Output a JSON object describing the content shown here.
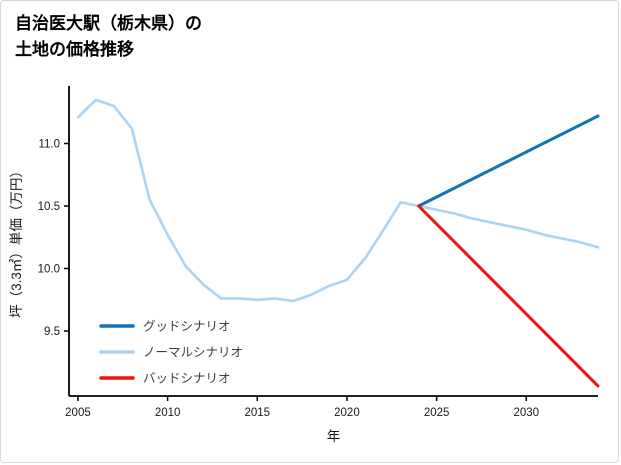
{
  "title": {
    "line1": "自治医大駅（栃木県）の",
    "line2": "土地の価格推移"
  },
  "chart_data": {
    "type": "line",
    "title": "自治医大駅（栃木県）の土地の価格推移",
    "xlabel": "年",
    "ylabel": "坪（3.3㎡）単価（万円）",
    "x_range": [
      2004.5,
      2034
    ],
    "y_range": [
      8.98,
      11.46
    ],
    "x_ticks": [
      2005,
      2010,
      2015,
      2020,
      2025,
      2030
    ],
    "y_ticks": [
      9.5,
      10.0,
      10.5,
      11.0
    ],
    "grid": false,
    "legend_position": "lower-left",
    "series": [
      {
        "id": "good",
        "name": "グッドシナリオ",
        "color": "#1373b8",
        "width": 3,
        "points": [
          [
            2024,
            10.5
          ],
          [
            2034,
            11.22
          ]
        ]
      },
      {
        "id": "normal",
        "name": "ノーマルシナリオ",
        "color": "#abd3f2",
        "width": 2.6,
        "points": [
          [
            2005,
            11.21
          ],
          [
            2006,
            11.35
          ],
          [
            2007,
            11.3
          ],
          [
            2008,
            11.12
          ],
          [
            2009,
            10.55
          ],
          [
            2010,
            10.27
          ],
          [
            2011,
            10.02
          ],
          [
            2012,
            9.87
          ],
          [
            2013,
            9.76
          ],
          [
            2014,
            9.76
          ],
          [
            2015,
            9.75
          ],
          [
            2016,
            9.76
          ],
          [
            2017,
            9.74
          ],
          [
            2018,
            9.79
          ],
          [
            2019,
            9.86
          ],
          [
            2020,
            9.91
          ],
          [
            2021,
            10.08
          ],
          [
            2022,
            10.3
          ],
          [
            2023,
            10.53
          ],
          [
            2024,
            10.5
          ],
          [
            2025,
            10.47
          ],
          [
            2026,
            10.44
          ],
          [
            2027,
            10.4
          ],
          [
            2028,
            10.37
          ],
          [
            2029,
            10.34
          ],
          [
            2030,
            10.31
          ],
          [
            2031,
            10.27
          ],
          [
            2032,
            10.24
          ],
          [
            2033,
            10.21
          ],
          [
            2034,
            10.17
          ]
        ]
      },
      {
        "id": "bad",
        "name": "バッドシナリオ",
        "color": "#e8160c",
        "width": 3,
        "points": [
          [
            2024,
            10.5
          ],
          [
            2034,
            9.06
          ]
        ]
      }
    ]
  }
}
